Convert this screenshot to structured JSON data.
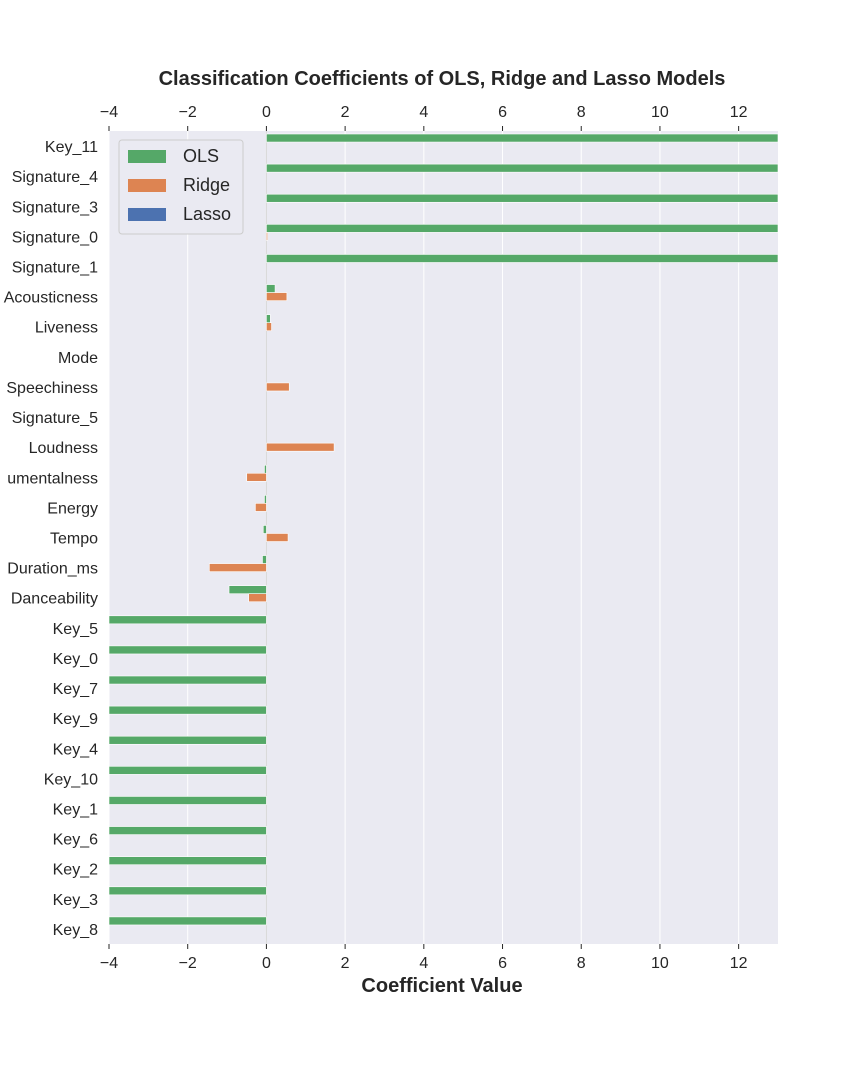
{
  "chart_data": {
    "type": "bar",
    "orientation": "horizontal",
    "title": "Classification Coefficients of OLS, Ridge and Lasso Models",
    "xlabel": "Coefficient Value",
    "ylabel": "",
    "xlim": [
      -4,
      13
    ],
    "xticks": [
      -4,
      -2,
      0,
      2,
      4,
      6,
      8,
      10,
      12
    ],
    "xtick_labels": [
      "−4",
      "−2",
      "0",
      "2",
      "4",
      "6",
      "8",
      "10",
      "12"
    ],
    "grid": true,
    "legend_position": "top-left",
    "categories": [
      "Key_11",
      "Signature_4",
      "Signature_3",
      "Signature_0",
      "Signature_1",
      "Acousticness",
      "Liveness",
      "Mode",
      "Speechiness",
      "Signature_5",
      "Loudness",
      "Instrumentalness",
      "Energy",
      "Tempo",
      "Duration_ms",
      "Danceability",
      "Key_5",
      "Key_0",
      "Key_7",
      "Key_9",
      "Key_4",
      "Key_10",
      "Key_1",
      "Key_6",
      "Key_2",
      "Key_3",
      "Key_8"
    ],
    "category_labels": [
      "Key_11",
      "Signature_4",
      "Signature_3",
      "Signature_0",
      "Signature_1",
      "Acousticness",
      "Liveness",
      "Mode",
      "Speechiness",
      "Signature_5",
      "Loudness",
      "umentalness",
      "Energy",
      "Tempo",
      "Duration_ms",
      "Danceability",
      "Key_5",
      "Key_0",
      "Key_7",
      "Key_9",
      "Key_4",
      "Key_10",
      "Key_1",
      "Key_6",
      "Key_2",
      "Key_3",
      "Key_8"
    ],
    "series": [
      {
        "name": "OLS",
        "color": "#55a868",
        "values": [
          13,
          13,
          13,
          13,
          13,
          0.22,
          0.1,
          0.0,
          0.0,
          0.0,
          0.0,
          -0.05,
          -0.05,
          -0.08,
          -0.1,
          -0.95,
          -4,
          -4,
          -4,
          -4,
          -4,
          -4,
          -4,
          -4,
          -4,
          -4,
          -4
        ]
      },
      {
        "name": "Ridge",
        "color": "#dd8452",
        "values": [
          0.0,
          0.0,
          0.0,
          0.03,
          0.0,
          0.52,
          0.13,
          0.0,
          0.58,
          0.0,
          1.72,
          -0.5,
          -0.28,
          0.55,
          -1.45,
          -0.45,
          0.0,
          0.0,
          0.0,
          0.0,
          0.0,
          0.0,
          0.0,
          0.0,
          0.0,
          0.0,
          0.0
        ]
      },
      {
        "name": "Lasso",
        "color": "#4c72b0",
        "values": [
          0,
          0,
          0,
          0,
          0,
          0,
          0,
          0,
          0,
          0,
          0,
          0,
          0,
          0,
          0,
          0,
          0,
          0,
          0,
          0,
          0,
          0,
          0,
          0,
          0,
          0,
          0
        ]
      }
    ]
  },
  "style": {
    "plot_background": "#eaeaf2",
    "grid_color": "#ffffff",
    "text_color": "#262626"
  }
}
